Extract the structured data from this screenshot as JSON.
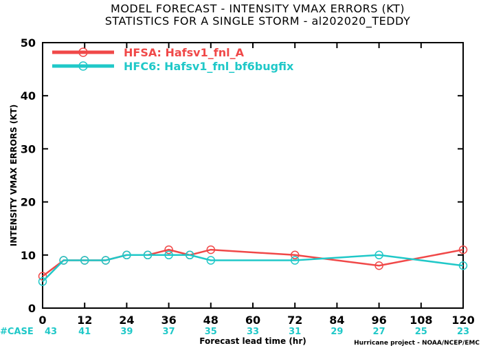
{
  "title_line1": "MODEL FORECAST - INTENSITY VMAX ERRORS (KT)",
  "title_line2": "STATISTICS FOR A SINGLE STORM - al202020_TEDDY",
  "credit": "Hurricane project - NOAA/NCEP/EMC",
  "case_label": "#CASE",
  "colors": {
    "series1": "#f04848",
    "series2": "#20c8c8"
  },
  "chart_data": {
    "type": "line",
    "title": "MODEL FORECAST - INTENSITY VMAX ERRORS (KT)",
    "subtitle": "STATISTICS FOR A SINGLE STORM - al202020_TEDDY",
    "xlabel": "Forecast lead time (hr)",
    "ylabel": "INTENSITY VMAX ERRORS (KT)",
    "xlim": [
      0,
      120
    ],
    "ylim": [
      0,
      50
    ],
    "xticks": [
      "0",
      "12",
      "24",
      "36",
      "48",
      "60",
      "72",
      "84",
      "96",
      "108",
      "120"
    ],
    "yticks": [
      "0",
      "10",
      "20",
      "30",
      "40",
      "50"
    ],
    "legend_position": "top-left",
    "grid": false,
    "series": [
      {
        "name": "HFSA: Hafsv1_fnl_A",
        "color": "#f04848",
        "x": [
          0,
          6,
          12,
          18,
          24,
          30,
          36,
          42,
          48,
          72,
          96,
          120
        ],
        "y": [
          6,
          9,
          9,
          9,
          10,
          10,
          11,
          10,
          11,
          10,
          8,
          11
        ]
      },
      {
        "name": "HFC6: Hafsv1_fnl_bf6bugfix",
        "color": "#20c8c8",
        "x": [
          0,
          6,
          12,
          18,
          24,
          30,
          36,
          42,
          48,
          72,
          96,
          120
        ],
        "y": [
          5,
          9,
          9,
          9,
          10,
          10,
          10,
          10,
          9,
          9,
          10,
          8
        ]
      }
    ],
    "case_counts": [
      "43",
      "41",
      "39",
      "37",
      "35",
      "33",
      "31",
      "29",
      "27",
      "25",
      "23"
    ]
  }
}
